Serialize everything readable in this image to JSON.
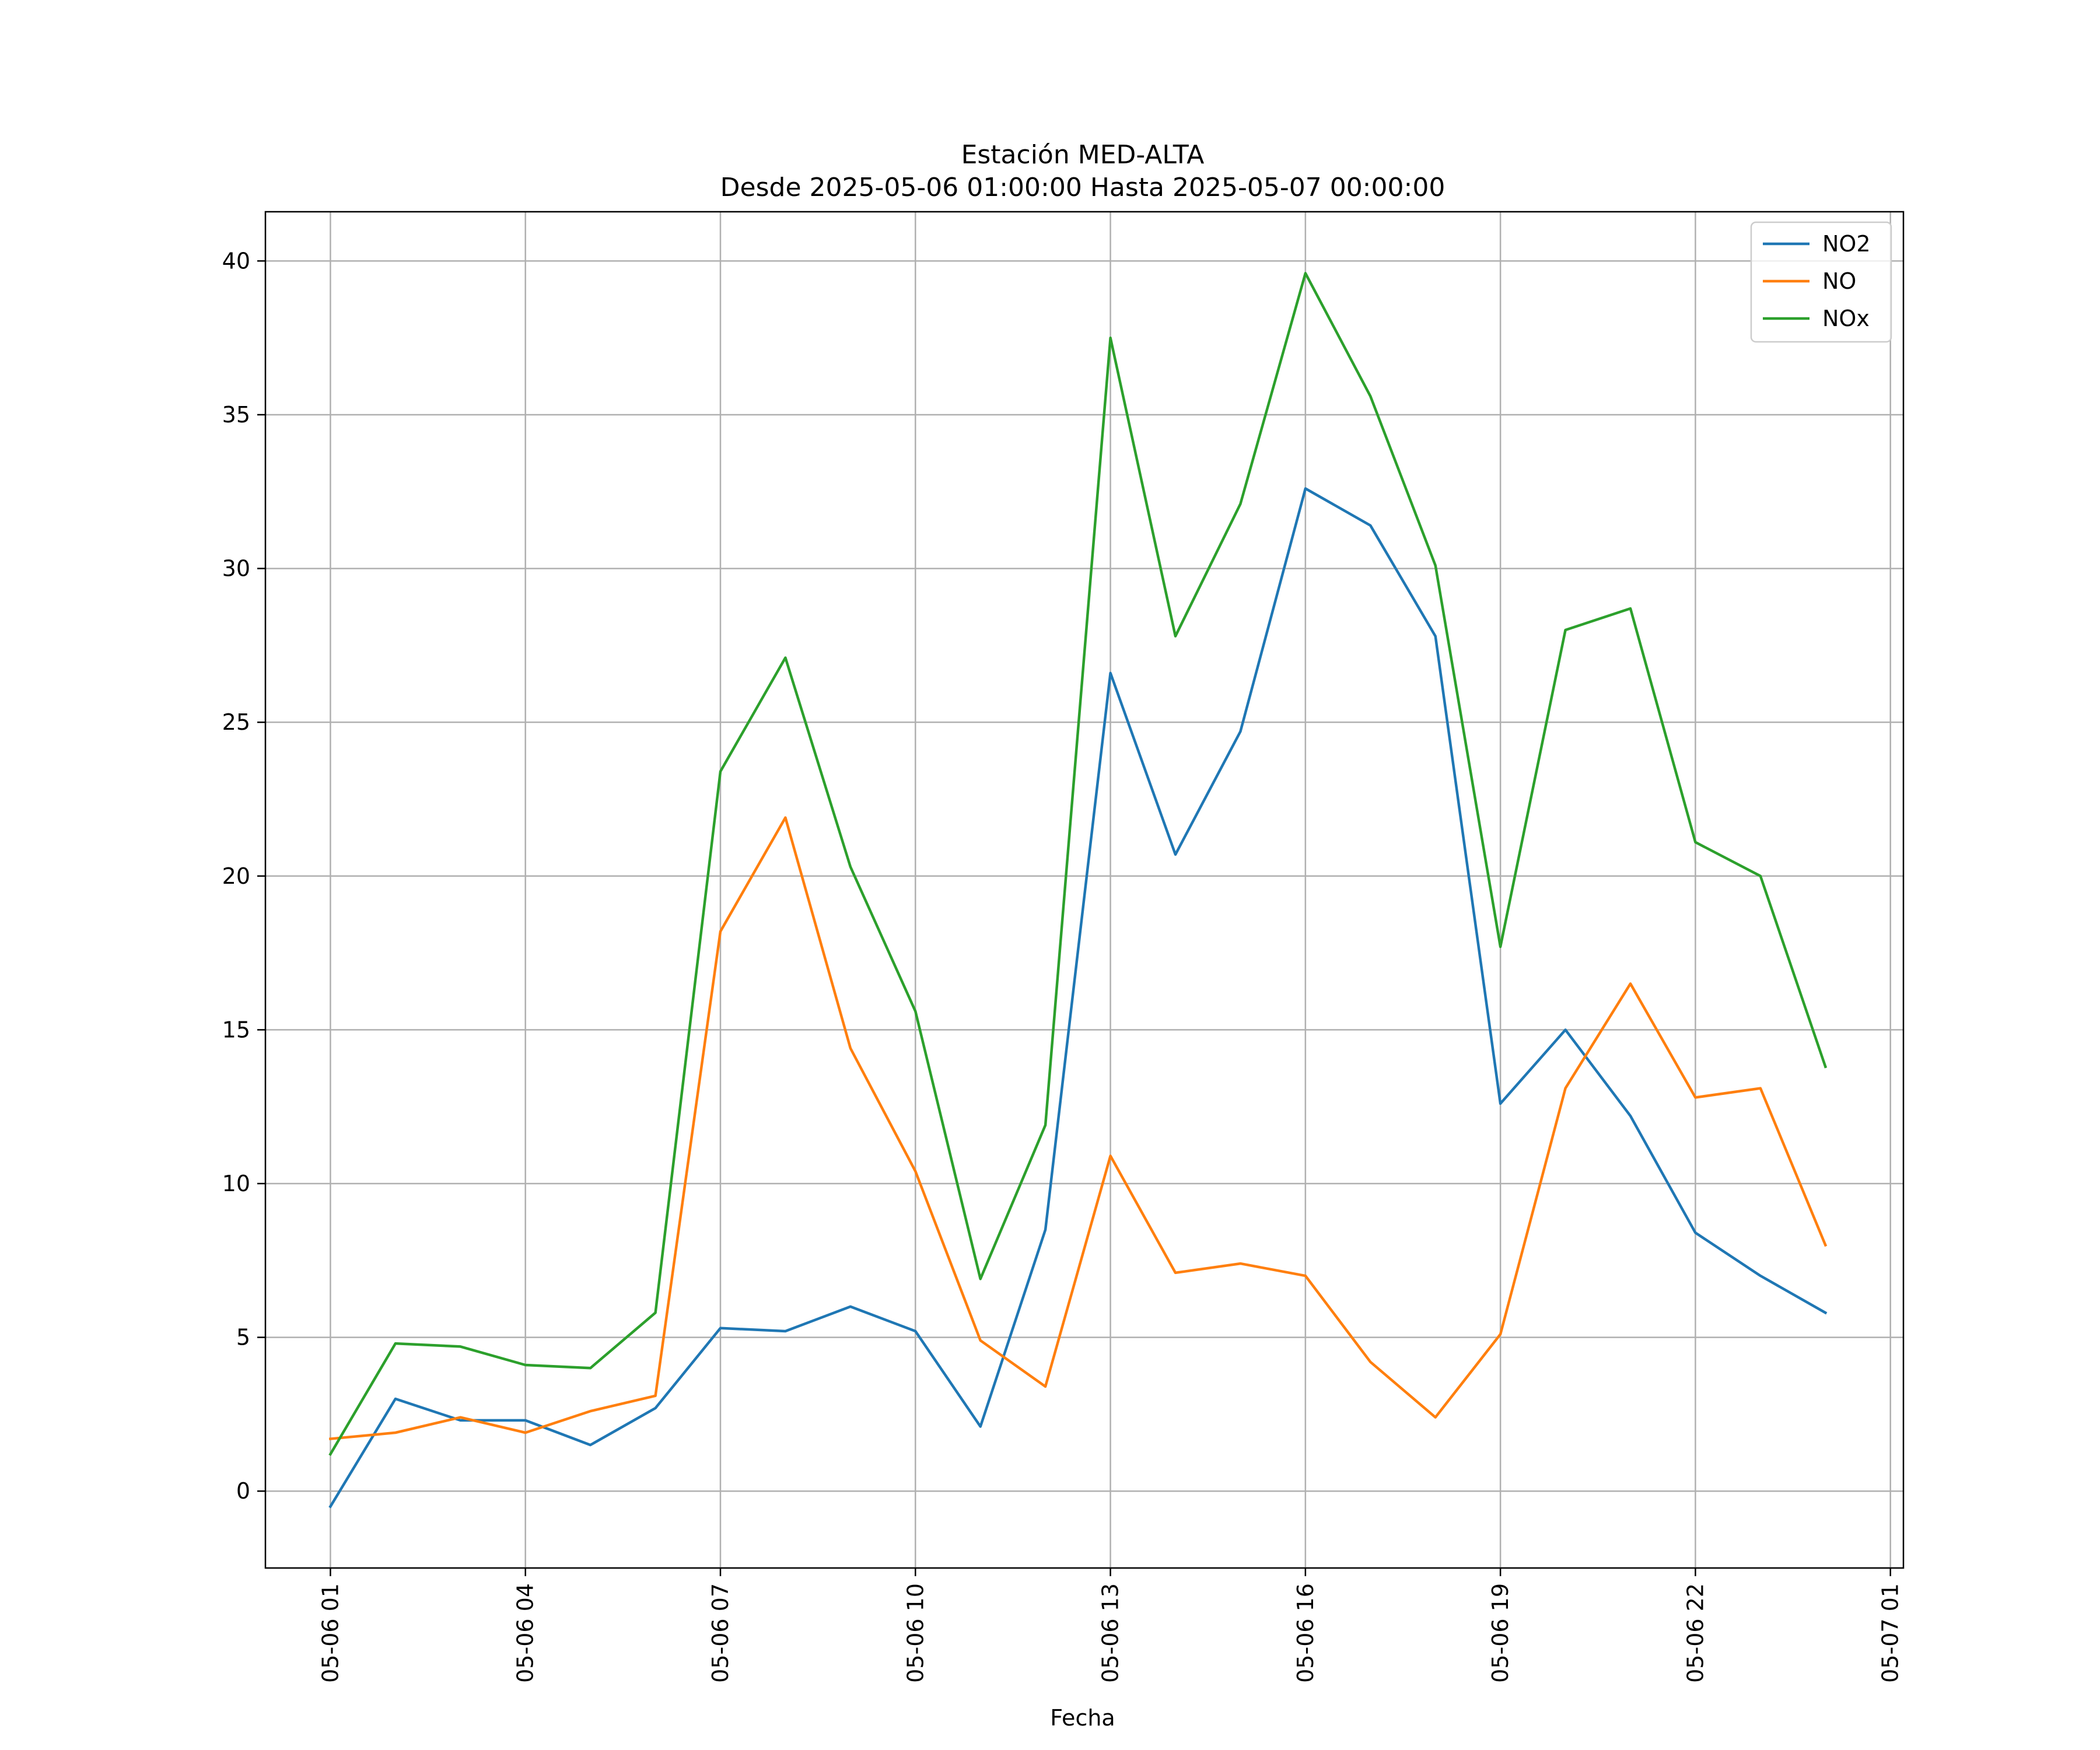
{
  "chart_data": {
    "type": "line",
    "title": "Estación MED-ALTA",
    "subtitle": "Desde 2025-05-06 01:00:00 Hasta 2025-05-07 00:00:00",
    "xlabel": "Fecha",
    "ylabel": "",
    "x": [
      "2025-05-06 01:00",
      "2025-05-06 02:00",
      "2025-05-06 03:00",
      "2025-05-06 04:00",
      "2025-05-06 05:00",
      "2025-05-06 06:00",
      "2025-05-06 07:00",
      "2025-05-06 08:00",
      "2025-05-06 09:00",
      "2025-05-06 10:00",
      "2025-05-06 11:00",
      "2025-05-06 12:00",
      "2025-05-06 13:00",
      "2025-05-06 14:00",
      "2025-05-06 15:00",
      "2025-05-06 16:00",
      "2025-05-06 17:00",
      "2025-05-06 18:00",
      "2025-05-06 19:00",
      "2025-05-06 20:00",
      "2025-05-06 21:00",
      "2025-05-06 22:00",
      "2025-05-06 23:00",
      "2025-05-07 00:00"
    ],
    "xlim": [
      "2025-05-06 00:00",
      "2025-05-07 01:12"
    ],
    "ylim": [
      -2.5,
      41.6
    ],
    "x_ticks": [
      "05-06 01",
      "05-06 04",
      "05-06 07",
      "05-06 10",
      "05-06 13",
      "05-06 16",
      "05-06 19",
      "05-06 22",
      "05-07 01"
    ],
    "y_ticks": [
      "0",
      "5",
      "10",
      "15",
      "20",
      "25",
      "30",
      "35",
      "40"
    ],
    "grid": true,
    "legend_position": "top-right",
    "series": [
      {
        "name": "NO2",
        "color": "#1f77b4",
        "values": [
          -0.5,
          3.0,
          2.3,
          2.3,
          1.5,
          2.7,
          5.3,
          5.2,
          6.0,
          5.2,
          2.1,
          8.5,
          26.6,
          20.7,
          24.7,
          32.6,
          31.4,
          27.8,
          12.6,
          15.0,
          12.2,
          8.4,
          7.0,
          5.8
        ]
      },
      {
        "name": "NO",
        "color": "#ff7f0e",
        "values": [
          1.7,
          1.9,
          2.4,
          1.9,
          2.6,
          3.1,
          18.2,
          21.9,
          14.4,
          10.4,
          4.9,
          3.4,
          10.9,
          7.1,
          7.4,
          7.0,
          4.2,
          2.4,
          5.1,
          13.1,
          16.5,
          12.8,
          13.1,
          8.0
        ]
      },
      {
        "name": "NOx",
        "color": "#2ca02c",
        "values": [
          1.2,
          4.8,
          4.7,
          4.1,
          4.0,
          5.8,
          23.4,
          27.1,
          20.3,
          15.6,
          6.9,
          11.9,
          37.5,
          27.8,
          32.1,
          39.6,
          35.6,
          30.1,
          17.7,
          28.0,
          28.7,
          21.1,
          20.0,
          13.8
        ]
      }
    ]
  }
}
